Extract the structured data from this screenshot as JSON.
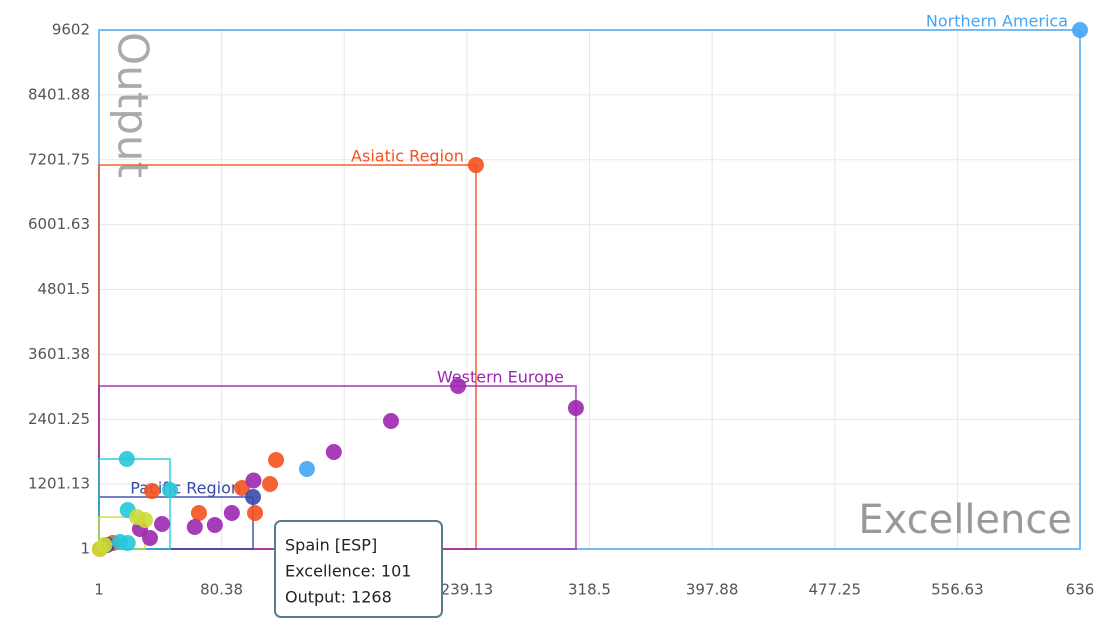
{
  "chart_data": {
    "type": "scatter",
    "x_label": "Excellence",
    "y_label": "Output",
    "xlim": [
      1,
      636
    ],
    "xticks": [
      1,
      80.38,
      159.75,
      239.13,
      318.5,
      397.88,
      477.25,
      556.63,
      636
    ],
    "ylim": [
      1,
      9602
    ],
    "yticks": [
      1,
      1201.13,
      2401.25,
      3601.38,
      4801.5,
      6001.63,
      7201.75,
      8401.88,
      9602
    ],
    "grid": true,
    "series": [
      {
        "name": "Northern America",
        "color": "#42a5f5",
        "x": [
          636,
          135.6
        ],
        "y": [
          9602,
          1481
        ]
      },
      {
        "name": "Asiatic Region",
        "color": "#f4511e",
        "x": [
          245,
          115.6,
          111.7,
          93.6,
          102,
          65.7,
          35.3,
          10,
          1.6
        ],
        "y": [
          7104,
          1647,
          1203,
          1130,
          667,
          667,
          1074,
          112,
          1
        ]
      },
      {
        "name": "Western Europe",
        "color": "#9c27b0",
        "x": [
          309.7,
          233.4,
          190,
          153,
          101,
          87,
          76,
          63,
          41.8,
          34,
          27.5
        ],
        "y": [
          2609,
          3016,
          2369,
          1795,
          1268,
          667,
          445,
          408,
          463,
          204,
          371
        ]
      },
      {
        "name": "Pacific Region",
        "color": "#3949ab",
        "x": [
          100.7,
          6.2
        ],
        "y": [
          963,
          75
        ]
      },
      {
        "color": "#26c6da",
        "x": [
          19,
          47,
          19.6,
          19.6,
          14.6
        ],
        "y": [
          1666,
          1092,
          722,
          112,
          130
        ]
      },
      {
        "color": "#cddc39",
        "x": [
          25.6,
          30.8,
          4.5,
          1.6
        ],
        "y": [
          593,
          537,
          75,
          1
        ]
      }
    ],
    "tooltip": {
      "title": "Spain [ESP]",
      "lines": [
        "Excellence: 101",
        "Output: 1268"
      ]
    }
  }
}
